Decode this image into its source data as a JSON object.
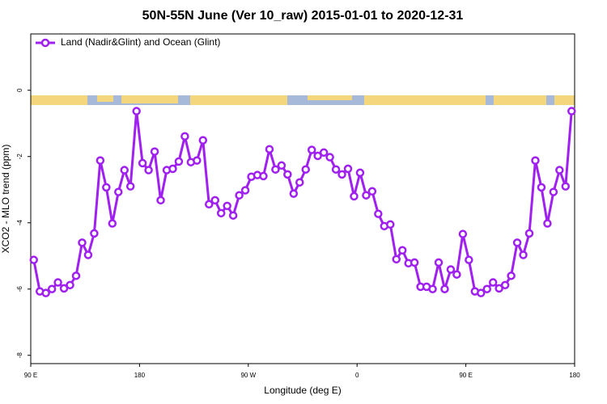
{
  "chart_data": {
    "type": "line",
    "title": "50N-55N June (Ver 10_raw)   2015-01-01 to 2020-12-31",
    "x_label": "Longitude (deg E)",
    "y_label": "XCO2 - MLO trend (ppm)",
    "xlim": [
      90,
      540
    ],
    "ylim": [
      -8.25,
      1.7
    ],
    "xticks": [
      {
        "value": 90,
        "label": "90 E"
      },
      180,
      {
        "value": 270,
        "label": "90 W"
      },
      {
        "value": 360,
        "label": "0"
      },
      {
        "value": 450,
        "label": "90 E"
      },
      {
        "value": 540,
        "label": "180"
      }
    ],
    "yticks": [
      -8,
      -6,
      -4,
      -2,
      0
    ],
    "legend": "top-left",
    "x": [
      92.5,
      97.5,
      102.5,
      107.5,
      112.5,
      117.5,
      122.5,
      127.5,
      132.5,
      137.5,
      142.5,
      147.5,
      152.5,
      157.5,
      162.5,
      167.5,
      172.5,
      177.5,
      182.5,
      187.5,
      192.5,
      197.5,
      202.5,
      207.5,
      212.5,
      217.5,
      222.5,
      227.5,
      232.5,
      237.5,
      242.5,
      247.5,
      252.5,
      257.5,
      262.5,
      267.5,
      272.5,
      277.5,
      282.5,
      287.5,
      292.5,
      297.5,
      302.5,
      307.5,
      312.5,
      317.5,
      322.5,
      327.5,
      332.5,
      337.5,
      342.5,
      347.5,
      352.5,
      357.5,
      362.5,
      367.5,
      372.5,
      377.5,
      382.5,
      387.5,
      392.5,
      397.5,
      402.5,
      407.5,
      412.5,
      417.5,
      422.5,
      427.5,
      432.5,
      437.5,
      442.5,
      447.5,
      452.5,
      457.5,
      462.5,
      467.5,
      472.5,
      477.5,
      482.5,
      487.5,
      492.5,
      497.5,
      502.5,
      507.5,
      512.5,
      517.5,
      522.5,
      527.5,
      532.5,
      537.5
    ],
    "series": [
      {
        "name": "Land (Nadir&Glint) and Ocean (Glint)",
        "color": "#a020f0",
        "values": [
          -5.12,
          -6.07,
          -6.12,
          -6.0,
          -5.8,
          -5.98,
          -5.88,
          -5.6,
          -4.6,
          -4.97,
          -4.32,
          -2.12,
          -2.93,
          -4.02,
          -3.07,
          -2.41,
          -2.9,
          -0.63,
          -2.2,
          -2.41,
          -1.85,
          -3.32,
          -2.41,
          -2.37,
          -2.15,
          -1.39,
          -2.17,
          -2.12,
          -1.51,
          -3.44,
          -3.32,
          -3.71,
          -3.49,
          -3.78,
          -3.17,
          -3.02,
          -2.61,
          -2.56,
          -2.59,
          -1.78,
          -2.39,
          -2.27,
          -2.54,
          -3.12,
          -2.78,
          -2.39,
          -1.8,
          -1.98,
          -1.88,
          -2.02,
          -2.39,
          -2.54,
          -2.37,
          -3.2,
          -2.49,
          -3.17,
          -3.05,
          -3.73,
          -4.1,
          -4.05,
          -5.1,
          -4.83,
          -5.22,
          -5.2,
          -5.93,
          -5.93,
          -6.0,
          -5.2,
          -6.0,
          -5.41,
          -5.56,
          -4.34,
          -5.12,
          -6.07,
          -6.12,
          -6.0,
          -5.8,
          -5.98,
          -5.88,
          -5.6,
          -4.6,
          -4.97,
          -4.32,
          -2.12,
          -2.93,
          -4.02,
          -3.07,
          -2.41,
          -2.9,
          -0.63
        ]
      }
    ]
  }
}
